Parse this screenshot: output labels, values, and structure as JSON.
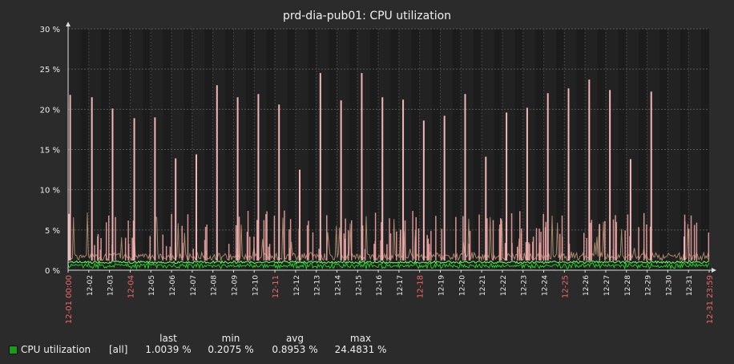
{
  "chart_data": {
    "type": "line",
    "title": "prd-dia-pub01: CPU utilization",
    "ylim": [
      0,
      30
    ],
    "y_ticks": [
      "0 %",
      "5 %",
      "10 %",
      "15 %",
      "20 %",
      "25 %",
      "30 %"
    ],
    "x_labels": [
      {
        "label": "12-01 00:00",
        "day": 0,
        "highlight": true
      },
      {
        "label": "12-02",
        "day": 1,
        "highlight": false
      },
      {
        "label": "12-03",
        "day": 2,
        "highlight": false
      },
      {
        "label": "12-04",
        "day": 3,
        "highlight": true
      },
      {
        "label": "12-05",
        "day": 4,
        "highlight": false
      },
      {
        "label": "12-06",
        "day": 5,
        "highlight": false
      },
      {
        "label": "12-07",
        "day": 6,
        "highlight": false
      },
      {
        "label": "12-08",
        "day": 7,
        "highlight": false
      },
      {
        "label": "12-09",
        "day": 8,
        "highlight": false
      },
      {
        "label": "12-10",
        "day": 9,
        "highlight": false
      },
      {
        "label": "12-11",
        "day": 10,
        "highlight": true
      },
      {
        "label": "12-12",
        "day": 11,
        "highlight": false
      },
      {
        "label": "12-13",
        "day": 12,
        "highlight": false
      },
      {
        "label": "12-14",
        "day": 13,
        "highlight": false
      },
      {
        "label": "12-15",
        "day": 14,
        "highlight": false
      },
      {
        "label": "12-16",
        "day": 15,
        "highlight": false
      },
      {
        "label": "12-17",
        "day": 16,
        "highlight": false
      },
      {
        "label": "12-18",
        "day": 17,
        "highlight": true
      },
      {
        "label": "12-19",
        "day": 18,
        "highlight": false
      },
      {
        "label": "12-20",
        "day": 19,
        "highlight": false
      },
      {
        "label": "12-21",
        "day": 20,
        "highlight": false
      },
      {
        "label": "12-22",
        "day": 21,
        "highlight": false
      },
      {
        "label": "12-23",
        "day": 22,
        "highlight": false
      },
      {
        "label": "12-24",
        "day": 23,
        "highlight": false
      },
      {
        "label": "12-25",
        "day": 24,
        "highlight": true
      },
      {
        "label": "12-26",
        "day": 25,
        "highlight": false
      },
      {
        "label": "12-27",
        "day": 26,
        "highlight": false
      },
      {
        "label": "12-28",
        "day": 27,
        "highlight": false
      },
      {
        "label": "12-29",
        "day": 28,
        "highlight": false
      },
      {
        "label": "12-30",
        "day": 29,
        "highlight": false
      },
      {
        "label": "12-31",
        "day": 30,
        "highlight": false
      },
      {
        "label": "12-31 23:59",
        "day": 31,
        "highlight": true
      }
    ],
    "peaks": [
      {
        "day": 0.1,
        "value": 21.8
      },
      {
        "day": 0.05,
        "value": 7.0
      },
      {
        "day": 1.15,
        "value": 21.5
      },
      {
        "day": 2.15,
        "value": 20.1
      },
      {
        "day": 3.2,
        "value": 18.9
      },
      {
        "day": 4.2,
        "value": 19.0
      },
      {
        "day": 5.2,
        "value": 13.9
      },
      {
        "day": 6.2,
        "value": 14.4
      },
      {
        "day": 7.2,
        "value": 23.0
      },
      {
        "day": 8.2,
        "value": 21.5
      },
      {
        "day": 9.2,
        "value": 21.9
      },
      {
        "day": 10.2,
        "value": 20.6
      },
      {
        "day": 11.2,
        "value": 12.5
      },
      {
        "day": 12.2,
        "value": 24.5
      },
      {
        "day": 13.2,
        "value": 21.1
      },
      {
        "day": 14.2,
        "value": 24.5
      },
      {
        "day": 15.2,
        "value": 21.5
      },
      {
        "day": 16.2,
        "value": 21.2
      },
      {
        "day": 17.2,
        "value": 18.6
      },
      {
        "day": 18.2,
        "value": 19.2
      },
      {
        "day": 19.2,
        "value": 21.9
      },
      {
        "day": 20.2,
        "value": 14.1
      },
      {
        "day": 21.2,
        "value": 19.6
      },
      {
        "day": 22.2,
        "value": 20.2
      },
      {
        "day": 23.2,
        "value": 22.0
      },
      {
        "day": 24.2,
        "value": 22.6
      },
      {
        "day": 25.2,
        "value": 23.7
      },
      {
        "day": 26.2,
        "value": 22.4
      },
      {
        "day": 27.2,
        "value": 13.8
      },
      {
        "day": 28.2,
        "value": 22.2
      },
      {
        "day": 29.8,
        "value": 4.2
      }
    ],
    "series": [
      {
        "name": "CPU utilization",
        "scope": "[all]",
        "last": "1.0039 %",
        "min": "0.2075 %",
        "avg": "0.8953 %",
        "max": "24.4831 %",
        "color": "#1a9c1a"
      }
    ]
  },
  "legend": {
    "headers": {
      "last": "last",
      "min": "min",
      "avg": "avg",
      "max": "max"
    }
  }
}
